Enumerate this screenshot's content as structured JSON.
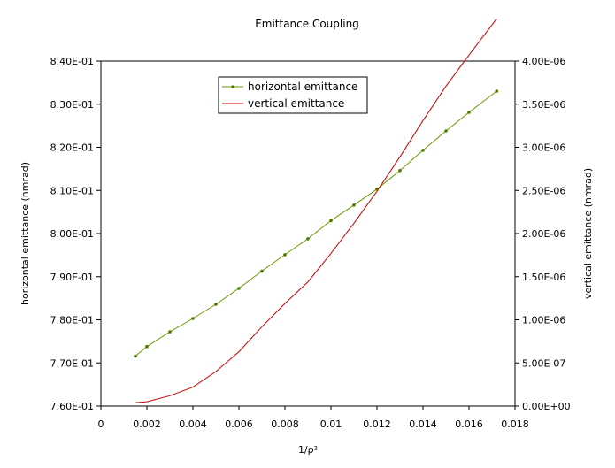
{
  "chart_data": {
    "type": "line",
    "title": "Emittance Coupling",
    "xlabel": "1/ρ²",
    "ylabel": "horizontal emittance (nmrad)",
    "y2label": "vertical emittance (nmrad)",
    "xlim": [
      0,
      0.018
    ],
    "ylim": [
      0.76,
      0.84
    ],
    "y2lim": [
      0,
      4e-06
    ],
    "x_ticks": [
      "0",
      "0.002",
      "0.004",
      "0.006",
      "0.008",
      "0.01",
      "0.012",
      "0.014",
      "0.016",
      "0.018"
    ],
    "y_ticks": [
      "7.60E-01",
      "7.70E-01",
      "7.80E-01",
      "7.90E-01",
      "8.00E-01",
      "8.10E-01",
      "8.20E-01",
      "8.30E-01",
      "8.40E-01"
    ],
    "y2_ticks": [
      "0.00E+00",
      "5.00E-07",
      "1.00E-06",
      "1.50E-06",
      "2.00E-06",
      "2.50E-06",
      "3.00E-06",
      "3.50E-06",
      "4.00E-06"
    ],
    "legend_position": "top-center",
    "grid": false,
    "series": [
      {
        "name": "horizontal emittance",
        "axis": "left",
        "color": "#6a9a00",
        "marker_color": "#4a7a00",
        "x": [
          0.0015,
          0.002,
          0.003,
          0.004,
          0.005,
          0.006,
          0.007,
          0.008,
          0.009,
          0.01,
          0.011,
          0.012,
          0.013,
          0.014,
          0.015,
          0.016,
          0.0172
        ],
        "y": [
          0.7716,
          0.7738,
          0.7772,
          0.7803,
          0.7836,
          0.7873,
          0.7913,
          0.7951,
          0.7988,
          0.803,
          0.8066,
          0.8103,
          0.8146,
          0.8193,
          0.8238,
          0.8281,
          0.833
        ]
      },
      {
        "name": "vertical emittance",
        "axis": "right",
        "color": "#cc0000",
        "x": [
          0.0015,
          0.002,
          0.003,
          0.004,
          0.005,
          0.006,
          0.007,
          0.008,
          0.009,
          0.01,
          0.011,
          0.012,
          0.013,
          0.014,
          0.015,
          0.016,
          0.0172
        ],
        "y": [
          4e-08,
          5e-08,
          1.2e-07,
          2.2e-07,
          4e-07,
          6.3e-07,
          9.2e-07,
          1.19e-06,
          1.44e-06,
          1.77e-06,
          2.12e-06,
          2.49e-06,
          2.89e-06,
          3.31e-06,
          3.71e-06,
          4.07e-06,
          4.49e-06
        ]
      }
    ]
  }
}
